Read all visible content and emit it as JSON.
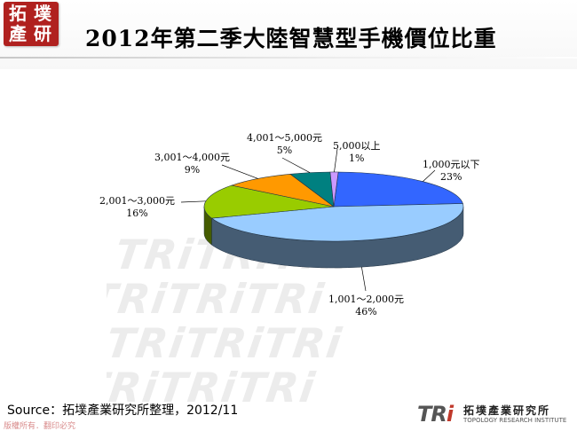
{
  "logo": {
    "chars": [
      "拓",
      "墣",
      "產",
      "研"
    ]
  },
  "title": "2012年第二季大陸智慧型手機價位比重",
  "watermark_text": "TRiTRiTRi",
  "source": "Source：拓墣產業研究所整理，2012/11",
  "copyright": "版權所有．翻印必究",
  "brand": {
    "tri": "TR",
    "tri_i": "i",
    "cn": "拓墣產業研究所",
    "en": "TOPOLOGY RESEARCH INSTITUTE"
  },
  "colors": {
    "logo": "#b0211f",
    "slice_under_1000": "#3366ff",
    "slice_1001_2000": "#99ccff",
    "slice_2001_3000": "#99cc00",
    "slice_3001_4000": "#ff9900",
    "slice_4001_5000": "#008080",
    "slice_over_5000": "#cc99ff"
  },
  "chart_data": {
    "type": "pie",
    "title": "2012年第二季大陸智慧型手機價位比重",
    "style": "3d",
    "slices": [
      {
        "label": "1,000元以下",
        "value": 23,
        "pct_label": "23%",
        "color": "#3366ff"
      },
      {
        "label": "1,001～2,000元",
        "value": 46,
        "pct_label": "46%",
        "color": "#99ccff"
      },
      {
        "label": "2,001～3,000元",
        "value": 16,
        "pct_label": "16%",
        "color": "#99cc00"
      },
      {
        "label": "3,001～4,000元",
        "value": 9,
        "pct_label": "9%",
        "color": "#ff9900"
      },
      {
        "label": "4,001～5,000元",
        "value": 5,
        "pct_label": "5%",
        "color": "#008080"
      },
      {
        "label": "5,000以上",
        "value": 1,
        "pct_label": "1%",
        "color": "#cc99ff"
      }
    ]
  }
}
